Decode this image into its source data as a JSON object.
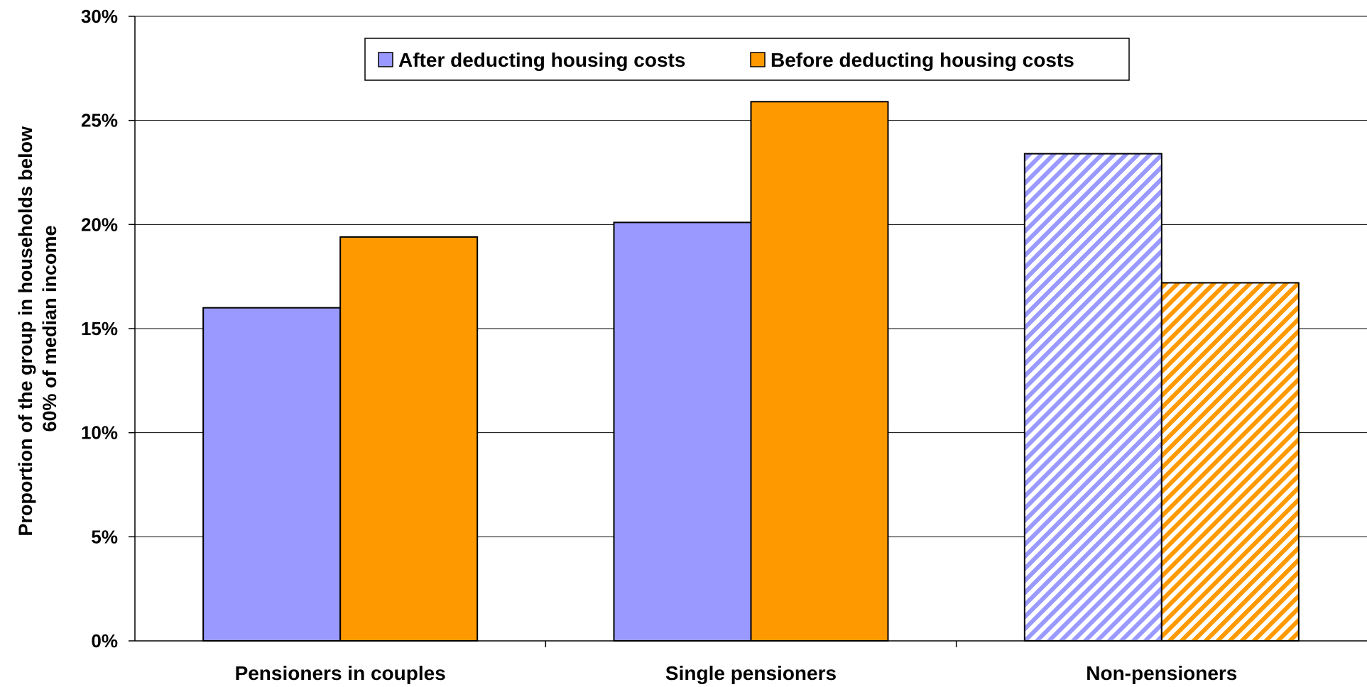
{
  "chart_data": {
    "type": "bar",
    "title": "",
    "categories": [
      "Pensioners in couples",
      "Single pensioners",
      "Non-pensioners"
    ],
    "series": [
      {
        "name": "After deducting housing costs",
        "color": "#9999ff",
        "values": [
          0.16,
          0.201,
          0.234
        ],
        "hatched": [
          false,
          false,
          true
        ]
      },
      {
        "name": "Before deducting housing costs",
        "color": "#ff9900",
        "values": [
          0.194,
          0.259,
          0.172
        ],
        "hatched": [
          false,
          false,
          true
        ]
      }
    ],
    "ylabel_line1": "Proportion of the group in households below",
    "ylabel_line2": "60% of median income",
    "xlabel": "",
    "ylim": [
      0,
      0.3
    ],
    "y_ticks": [
      0,
      0.05,
      0.1,
      0.15,
      0.2,
      0.25,
      0.3
    ],
    "y_tick_labels": [
      "0%",
      "5%",
      "10%",
      "15%",
      "20%",
      "25%",
      "30%"
    ],
    "grid": true,
    "legend_position": "top-center"
  }
}
